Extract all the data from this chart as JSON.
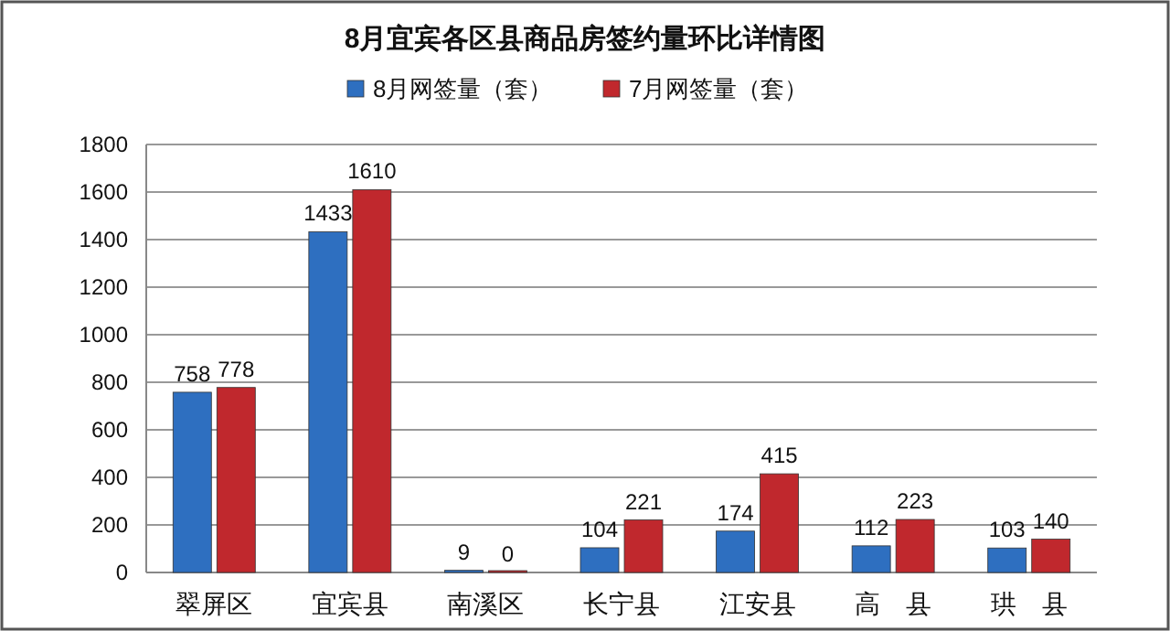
{
  "chart_data": {
    "type": "bar",
    "title": "8月宜宾各区县商品房签约量环比详情图",
    "categories": [
      "翠屏区",
      "宜宾县",
      "南溪区",
      "长宁县",
      "江安县",
      "高　县",
      "珙　县"
    ],
    "series": [
      {
        "name": "8月网签量（套）",
        "color": "#2e6fc0",
        "values": [
          758,
          1433,
          9,
          104,
          174,
          112,
          103
        ]
      },
      {
        "name": "7月网签量（套）",
        "color": "#c0282d",
        "values": [
          778,
          1610,
          0,
          221,
          415,
          223,
          140
        ]
      }
    ],
    "ylim": [
      0,
      1800
    ],
    "yticks": [
      0,
      200,
      400,
      600,
      800,
      1000,
      1200,
      1400,
      1600,
      1800
    ],
    "grid": "y",
    "legend": "top",
    "data_labels": true
  }
}
